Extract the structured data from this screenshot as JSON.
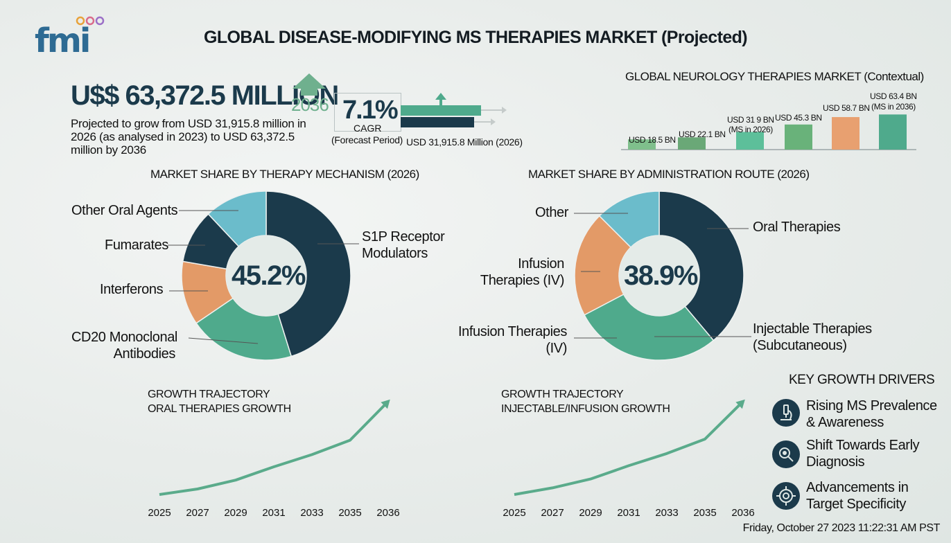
{
  "logo": {
    "text": "fmi",
    "dot_colors": [
      "#e8a23a",
      "#d96b8b",
      "#9b6fc7"
    ]
  },
  "title": "GLOBAL DISEASE-MODIFYING MS THERAPIES MARKET (Projected)",
  "headline": {
    "value": "U$$ 63,372.5 MILLION",
    "year": "2036",
    "description": "Projected to grow from USD 31,915.8 million in 2026 (as analysed in 2023) to USD 63,372.5 million by 2036"
  },
  "cagr": {
    "value": "7.1%",
    "label": "CAGR",
    "period": "(Forecast Period)",
    "base_label": "USD 31,915.8 Million (2026)"
  },
  "colors": {
    "dark": "#1b3a4b",
    "teal": "#4faa8c",
    "orange": "#e39a67",
    "light_blue": "#6bbccb",
    "green": "#7fbf8c"
  },
  "chart_data": [
    {
      "type": "bar",
      "title": "GLOBAL NEUROLOGY THERAPIES MARKET (Contextual)",
      "labels": [
        "USD 18.5 BN",
        "USD 22.1 BN",
        "USD 31 9 BN (MS in 2026)",
        "USD 45.3 BN",
        "USD 58.7 BN",
        "USD 63.4 BN (MS in 2036)"
      ],
      "values": [
        18.5,
        22.1,
        31.9,
        45.3,
        58.7,
        63.4
      ],
      "colors": [
        "#7fbf8c",
        "#6aa877",
        "#5dbf9a",
        "#69b27a",
        "#e8a070",
        "#4faa8c"
      ]
    },
    {
      "type": "pie",
      "title": "MARKET SHARE BY THERAPY MECHANISM (2026)",
      "center_value": "45.2%",
      "slices": [
        {
          "label": "S1P Receptor Modulators",
          "value": 45.2,
          "color": "#1b3a4b"
        },
        {
          "label": "CD20 Monoclonal Antibodies",
          "value": 20.3,
          "color": "#4faa8c"
        },
        {
          "label": "Interferons",
          "value": 12.2,
          "color": "#e39a67"
        },
        {
          "label": "Fumarates",
          "value": 10.3,
          "color": "#1b3a4b"
        },
        {
          "label": "Other Oral Agents",
          "value": 12.0,
          "color": "#6bbccb"
        }
      ]
    },
    {
      "type": "pie",
      "title": "MARKET SHARE BY ADMINISTRATION ROUTE (2026)",
      "center_value": "38.9%",
      "slices": [
        {
          "label": "Oral Therapies",
          "value": 38.9,
          "color": "#1b3a4b"
        },
        {
          "label": "Injectable Therapies (Subcutaneous)",
          "value": 28.4,
          "color": "#4faa8c"
        },
        {
          "label": "Infusion Therapies (IV)",
          "value": 20.2,
          "color": "#e39a67"
        },
        {
          "label": "Other",
          "value": 12.5,
          "color": "#6bbccb"
        }
      ],
      "extra_label": "Infusion Therapies (IV)"
    },
    {
      "type": "line",
      "title": "GROWTH TRAJECTORY ORAL THERAPIES GROWTH",
      "x": [
        "2025",
        "2027",
        "2029",
        "2031",
        "2033",
        "2035",
        "2036"
      ],
      "y": [
        0,
        10,
        26,
        50,
        72,
        98,
        168
      ]
    },
    {
      "type": "line",
      "title": "GROWTH TRAJECTORY INJECTABLE/INFUSION GROWTH",
      "x": [
        "2025",
        "2027",
        "2029",
        "2031",
        "2033",
        "2035",
        "2036"
      ],
      "y": [
        0,
        12,
        28,
        52,
        74,
        100,
        168
      ]
    }
  ],
  "sections": {
    "mechanism_title": "MARKET SHARE BY THERAPY MECHANISM (2026)",
    "route_title": "MARKET SHARE BY ADMINISTRATION ROUTE (2026)",
    "neuro_title": "GLOBAL NEUROLOGY THERAPIES MARKET (Contextual)",
    "oral_growth_line1": "GROWTH TRAJECTORY",
    "oral_growth_line2": "ORAL THERAPIES GROWTH",
    "inj_growth_line1": "GROWTH TRAJECTORY",
    "inj_growth_line2": "INJECTABLE/INFUSION GROWTH"
  },
  "mech_labels": {
    "s1p_1": "S1P Receptor",
    "s1p_2": "Modulators",
    "cd20_1": "CD20 Monoclonal",
    "cd20_2": "Antibodies",
    "interferons": "Interferons",
    "fumarates": "Fumarates",
    "other_oral": "Other Oral Agents"
  },
  "route_labels": {
    "oral": "Oral Therapies",
    "inj_1": "Injectable Therapies",
    "inj_2": "(Subcutaneous)",
    "inf_1": "Infusion",
    "inf_2": "Therapies (IV)",
    "inf_low_1": "Infusion Therapies",
    "inf_low_2": "(IV)",
    "other": "Other"
  },
  "neuro_bar_labels": {
    "b1": "USD 18.5 BN",
    "b2": "USD 22.1 BN",
    "b3_1": "USD 31 9 BN",
    "b3_2": "(MS in 2026)",
    "b4": "USD 45.3 BN",
    "b5": "USD 58.7 BN",
    "b6_1": "USD 63.4 BN",
    "b6_2": "(MS in 2036)"
  },
  "drivers": {
    "title": "KEY GROWTH DRIVERS",
    "items": [
      {
        "line1": "Rising MS Prevalence",
        "line2": "& Awareness",
        "icon": "microscope-icon"
      },
      {
        "line1": "Shift Towards Early",
        "line2": "Diagnosis",
        "icon": "magnifier-icon"
      },
      {
        "line1": "Advancements in",
        "line2": "Target Specificity",
        "icon": "target-icon"
      }
    ]
  },
  "timestamp": "Friday, October 27 2023 11:22:31 AM PST"
}
